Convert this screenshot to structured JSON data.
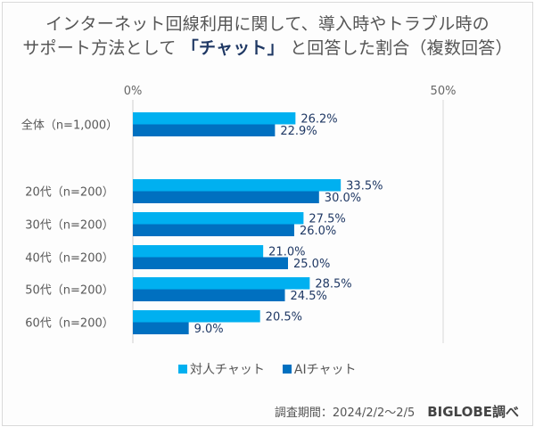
{
  "chart_data": {
    "type": "bar",
    "orientation": "horizontal",
    "title_parts": [
      "インターネット回線利用に関して、導入時やトラブル時の",
      "サポート方法として",
      "「チャット」",
      "と回答した割合（複数回答）"
    ],
    "title": "インターネット回線利用に関して、導入時やトラブル時のサポート方法として「チャット」と回答した割合（複数回答）",
    "categories": [
      "全体（n=1,000）",
      "20代（n=200）",
      "30代（n=200）",
      "40代（n=200）",
      "50代（n=200）",
      "60代（n=200）"
    ],
    "series": [
      {
        "name": "対人チャット",
        "color": "#00b0f0",
        "values": [
          26.2,
          33.5,
          27.5,
          21.0,
          28.5,
          20.5
        ]
      },
      {
        "name": "AIチャット",
        "color": "#0070c0",
        "values": [
          22.9,
          30.0,
          26.0,
          25.0,
          24.5,
          9.0
        ]
      }
    ],
    "data_labels": [
      [
        "26.2%",
        "33.5%",
        "27.5%",
        "21.0%",
        "28.5%",
        "20.5%"
      ],
      [
        "22.9%",
        "30.0%",
        "26.0%",
        "25.0%",
        "24.5%",
        "9.0%"
      ]
    ],
    "xlim": [
      0,
      50
    ],
    "x_ticks": [
      "0%",
      "50%"
    ],
    "xlabel": "",
    "ylabel": "",
    "grid": true,
    "legend_position": "bottom",
    "label_color": "#1f3864"
  },
  "footer": {
    "period": "調査期間：2024/2/2～2/5",
    "source": "BIGLOBE調べ"
  }
}
